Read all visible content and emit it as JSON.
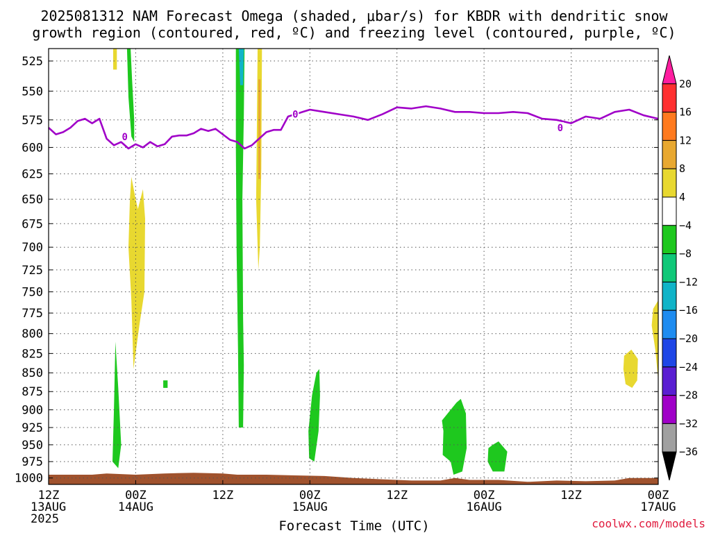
{
  "chart_data": {
    "type": "heatmap",
    "title": "2025081312 NAM Forecast Omega (shaded, μbar/s) for KBDR with dendritic snow",
    "subtitle": "growth region (contoured, red, ºC) and freezing level (contoured, purple, ºC)",
    "xlabel": "Forecast Time (UTC)",
    "x_ticks": [
      {
        "hour": 0,
        "line1": "12Z",
        "line2": "13AUG",
        "line3": "2025"
      },
      {
        "hour": 12,
        "line1": "00Z",
        "line2": "14AUG",
        "line3": ""
      },
      {
        "hour": 24,
        "line1": "12Z",
        "line2": "",
        "line3": ""
      },
      {
        "hour": 36,
        "line1": "00Z",
        "line2": "15AUG",
        "line3": ""
      },
      {
        "hour": 48,
        "line1": "12Z",
        "line2": "",
        "line3": ""
      },
      {
        "hour": 60,
        "line1": "00Z",
        "line2": "16AUG",
        "line3": ""
      },
      {
        "hour": 72,
        "line1": "12Z",
        "line2": "",
        "line3": ""
      },
      {
        "hour": 84,
        "line1": "00Z",
        "line2": "17AUG",
        "line3": ""
      }
    ],
    "xlim": [
      0,
      84
    ],
    "y_ticks": [
      525,
      550,
      575,
      600,
      625,
      650,
      675,
      700,
      725,
      750,
      775,
      800,
      825,
      850,
      875,
      900,
      925,
      950,
      975,
      1000
    ],
    "ylim": [
      515,
      1010
    ],
    "y_scale": "log",
    "grid": true,
    "colorbar": {
      "labels": [
        "20",
        "16",
        "12",
        "8",
        "4",
        "−4",
        "−8",
        "−12",
        "−16",
        "−20",
        "−24",
        "−28",
        "−32",
        "−36"
      ],
      "colors": [
        "#ff1ea0",
        "#ff3030",
        "#ff7a1e",
        "#e8a830",
        "#e8d830",
        "#ffffff",
        "#1ec81e",
        "#10c878",
        "#10b4c8",
        "#1e8cf0",
        "#1e46e6",
        "#5a1ed2",
        "#a000c8",
        "#a0a0a0",
        "#000000"
      ]
    },
    "series": [
      {
        "kind": "omega_fill",
        "color": "#1ec81e",
        "regions": [
          [
            [
              9.2,
              810
            ],
            [
              9.6,
              870
            ],
            [
              10.0,
              950
            ],
            [
              9.6,
              985
            ],
            [
              8.8,
              975
            ],
            [
              9.0,
              900
            ]
          ],
          [
            [
              10.8,
              515
            ],
            [
              11.3,
              515
            ],
            [
              11.5,
              540
            ],
            [
              11.8,
              575
            ],
            [
              11.8,
              595
            ],
            [
              11.4,
              590
            ],
            [
              11.0,
              555
            ]
          ],
          [
            [
              15.8,
              860
            ],
            [
              16.4,
              860
            ],
            [
              16.4,
              870
            ],
            [
              15.8,
              870
            ]
          ],
          [
            [
              25.8,
              515
            ],
            [
              27.0,
              515
            ],
            [
              26.9,
              570
            ],
            [
              26.7,
              650
            ],
            [
              26.8,
              780
            ],
            [
              26.9,
              840
            ],
            [
              26.8,
              925
            ],
            [
              26.2,
              925
            ],
            [
              26.1,
              820
            ],
            [
              25.9,
              700
            ],
            [
              25.8,
              600
            ]
          ],
          [
            [
              36.9,
              850
            ],
            [
              37.3,
              845
            ],
            [
              37.4,
              880
            ],
            [
              37.2,
              930
            ],
            [
              36.6,
              975
            ],
            [
              35.9,
              970
            ],
            [
              35.8,
              930
            ],
            [
              36.3,
              880
            ]
          ],
          [
            [
              54.2,
              915
            ],
            [
              56.2,
              890
            ],
            [
              56.8,
              885
            ],
            [
              57.5,
              905
            ],
            [
              57.6,
              955
            ],
            [
              57.0,
              990
            ],
            [
              55.8,
              995
            ],
            [
              55.4,
              975
            ],
            [
              54.3,
              965
            ],
            [
              54.4,
              930
            ]
          ],
          [
            [
              61.2,
              950
            ],
            [
              62.0,
              945
            ],
            [
              63.2,
              960
            ],
            [
              62.8,
              990
            ],
            [
              61.2,
              990
            ],
            [
              60.5,
              975
            ],
            [
              60.6,
              955
            ]
          ]
        ]
      },
      {
        "kind": "omega_fill",
        "color": "#10b4c8",
        "regions": [
          [
            [
              26.2,
              515
            ],
            [
              26.9,
              515
            ],
            [
              26.8,
              545
            ],
            [
              26.4,
              545
            ]
          ]
        ]
      },
      {
        "kind": "omega_fill",
        "color": "#e8d830",
        "regions": [
          [
            [
              8.9,
              515
            ],
            [
              9.4,
              515
            ],
            [
              9.4,
              532
            ],
            [
              8.9,
              532
            ]
          ],
          [
            [
              11.4,
              628
            ],
            [
              12.0,
              650
            ],
            [
              12.3,
              660
            ],
            [
              13.0,
              640
            ],
            [
              13.3,
              670
            ],
            [
              13.2,
              750
            ],
            [
              12.5,
              790
            ],
            [
              11.7,
              845
            ],
            [
              11.4,
              760
            ],
            [
              11.0,
              700
            ],
            [
              11.2,
              650
            ]
          ],
          [
            [
              28.8,
              515
            ],
            [
              29.4,
              515
            ],
            [
              29.3,
              620
            ],
            [
              29.1,
              700
            ],
            [
              28.9,
              725
            ],
            [
              28.6,
              650
            ],
            [
              28.7,
              580
            ]
          ],
          [
            [
              79.3,
              828
            ],
            [
              80.3,
              820
            ],
            [
              81.2,
              832
            ],
            [
              81.1,
              860
            ],
            [
              80.4,
              870
            ],
            [
              79.5,
              865
            ],
            [
              79.2,
              845
            ]
          ],
          [
            [
              83.3,
              770
            ],
            [
              84.0,
              760
            ],
            [
              84.0,
              860
            ],
            [
              83.6,
              820
            ],
            [
              83.1,
              790
            ]
          ]
        ]
      },
      {
        "kind": "omega_fill",
        "color": "#e8a830",
        "regions": [
          [
            [
              28.9,
              540
            ],
            [
              29.2,
              540
            ],
            [
              29.2,
              630
            ],
            [
              28.9,
              630
            ]
          ]
        ]
      },
      {
        "kind": "surface",
        "color": "#a0522d",
        "x": [
          0,
          6,
          8,
          12,
          16,
          20,
          24,
          26,
          30,
          34,
          38,
          42,
          46,
          50,
          54,
          56,
          58,
          62,
          66,
          70,
          74,
          78,
          80,
          84
        ],
        "y": [
          995,
          995,
          993,
          995,
          993,
          992,
          993,
          995,
          995,
          996,
          997,
          1000,
          1002,
          1004,
          1004,
          1000,
          1003,
          1003,
          1006,
          1004,
          1005,
          1004,
          1000,
          1000
        ]
      },
      {
        "kind": "freezing_level",
        "color": "#a000c8",
        "label": "0",
        "label_points": [
          [
            10.5,
            590
          ],
          [
            34.0,
            570
          ],
          [
            70.5,
            582
          ]
        ],
        "x": [
          0,
          1,
          2,
          3,
          4,
          5,
          6,
          7,
          8,
          9,
          10,
          11,
          12,
          13,
          14,
          15,
          16,
          17,
          18,
          19,
          20,
          21,
          22,
          23,
          24,
          25,
          26,
          27,
          28,
          29,
          30,
          31,
          32,
          33,
          34,
          35,
          36,
          38,
          40,
          42,
          44,
          46,
          48,
          50,
          52,
          54,
          56,
          58,
          60,
          62,
          64,
          66,
          68,
          70,
          72,
          74,
          76,
          78,
          80,
          82,
          84
        ],
        "y": [
          582,
          588,
          586,
          582,
          576,
          574,
          578,
          574,
          592,
          598,
          595,
          601,
          597,
          600,
          595,
          599,
          597,
          590,
          589,
          589,
          587,
          583,
          585,
          583,
          588,
          593,
          595,
          601,
          598,
          592,
          586,
          584,
          584,
          572,
          570,
          568,
          566,
          568,
          570,
          572,
          575,
          570,
          564,
          565,
          563,
          565,
          568,
          568,
          569,
          569,
          568,
          569,
          574,
          575,
          578,
          572,
          574,
          568,
          566,
          571,
          574
        ]
      }
    ],
    "credit": "coolwx.com/models"
  }
}
